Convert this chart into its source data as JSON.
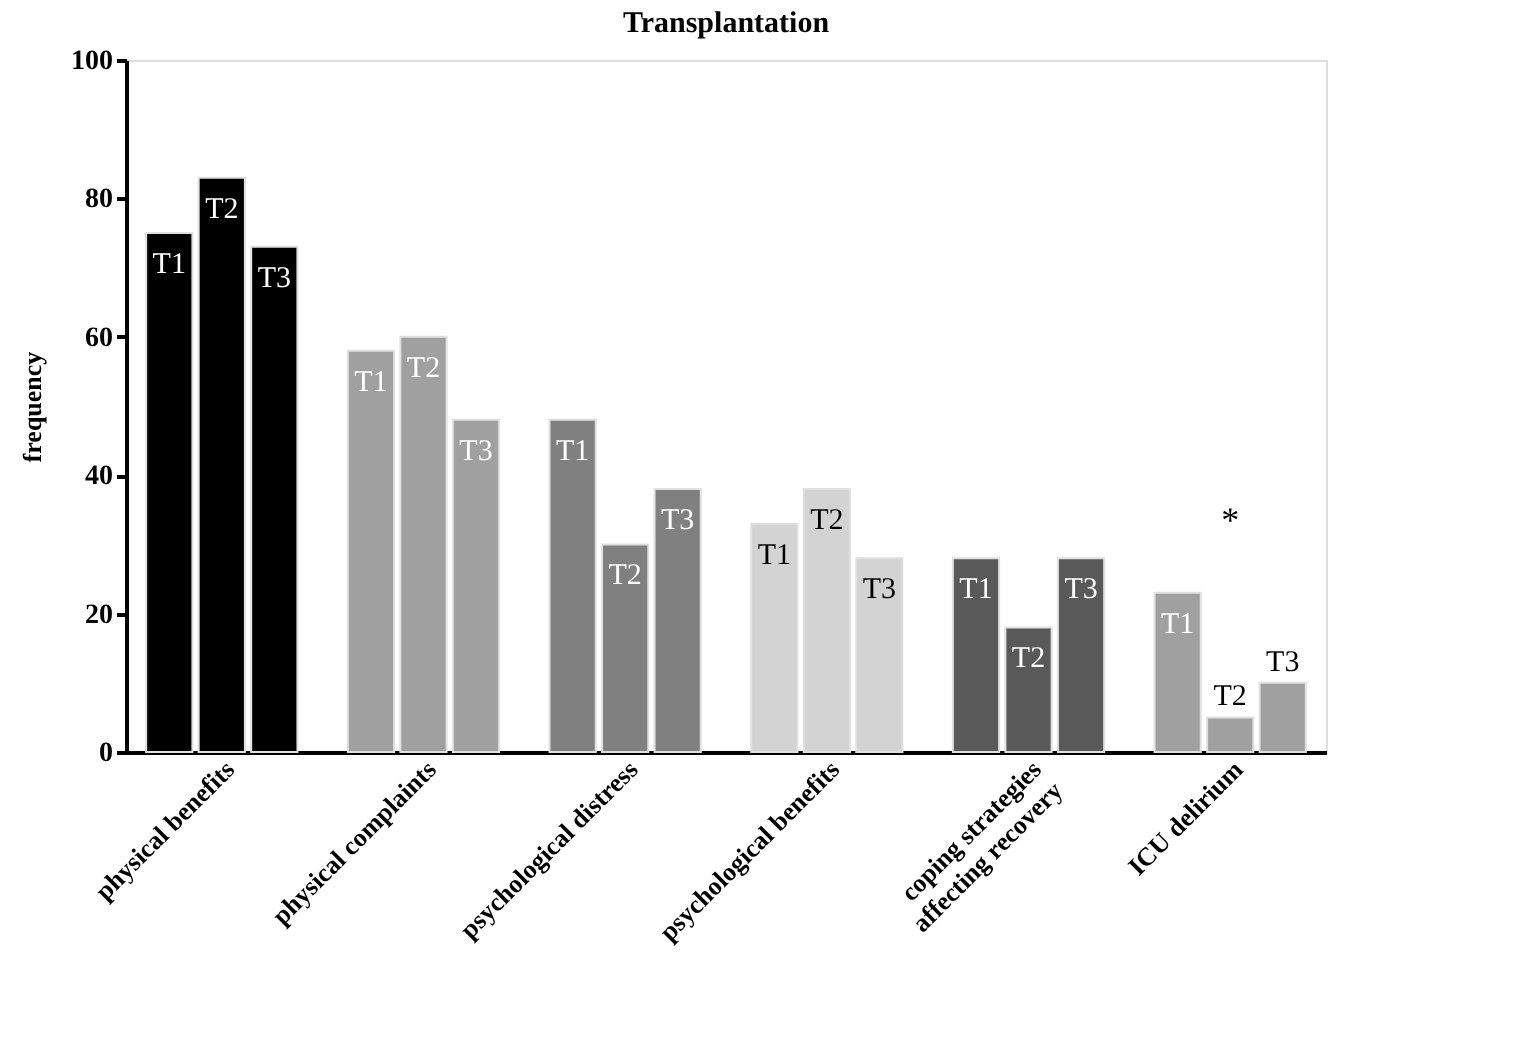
{
  "chart_data": {
    "type": "bar",
    "title": "Transplantation",
    "ylabel": "frequency",
    "categories": [
      "physical benefits",
      "physical complaints",
      "psychological distress",
      "psychological benefits",
      "coping strategies affecting recovery",
      "ICU delirium"
    ],
    "series": [
      {
        "name": "T1",
        "colors": [
          "#000000",
          "#a0a0a0",
          "#808080",
          "#d3d3d3",
          "#595959",
          "#a0a0a0"
        ],
        "values": [
          75,
          58,
          48,
          33,
          28,
          23
        ]
      },
      {
        "name": "T2",
        "colors": [
          "#000000",
          "#a0a0a0",
          "#808080",
          "#d3d3d3",
          "#595959",
          "#a0a0a0"
        ],
        "values": [
          83,
          60,
          30,
          38,
          18,
          5
        ]
      },
      {
        "name": "T3",
        "colors": [
          "#000000",
          "#a0a0a0",
          "#808080",
          "#d3d3d3",
          "#595959",
          "#a0a0a0"
        ],
        "values": [
          73,
          48,
          38,
          28,
          28,
          10
        ]
      }
    ],
    "ylim": [
      0,
      100
    ],
    "yticks": [
      0,
      20,
      40,
      60,
      80,
      100
    ],
    "grid": false,
    "annotations": [
      "*"
    ]
  }
}
